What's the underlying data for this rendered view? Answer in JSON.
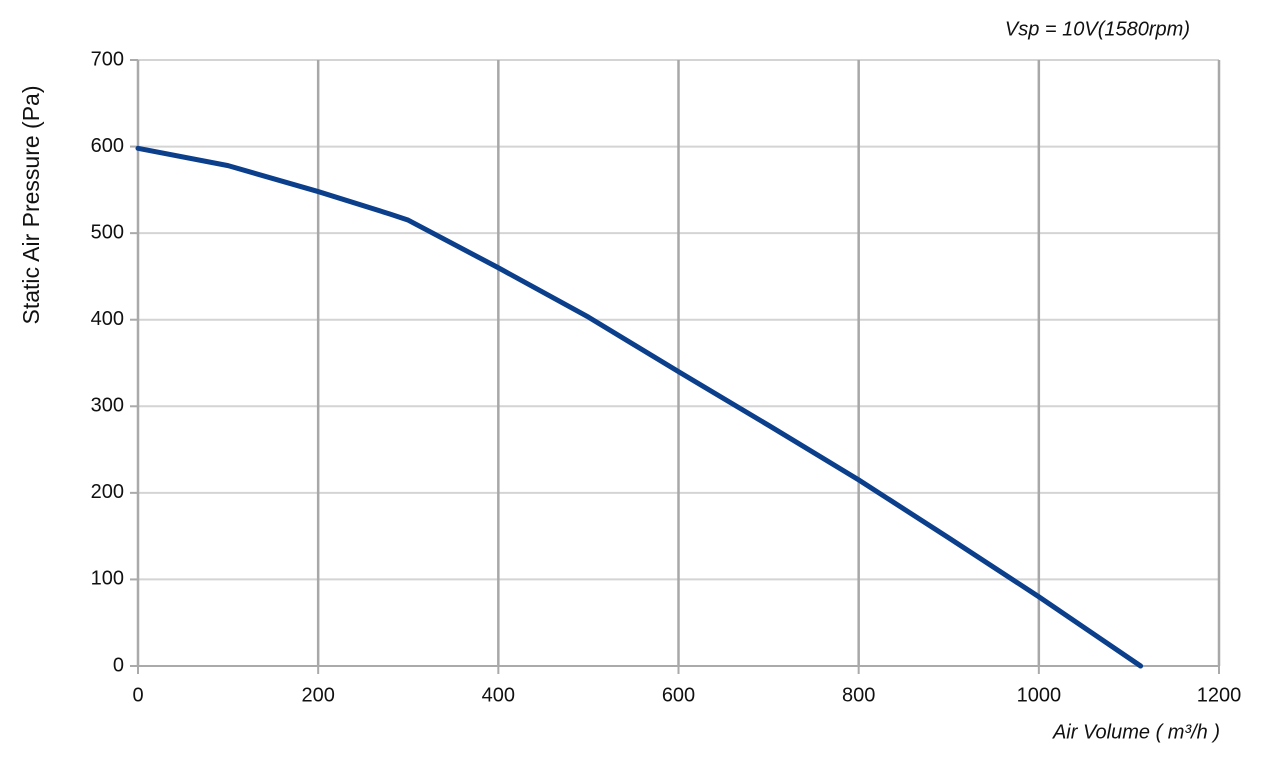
{
  "chart_data": {
    "type": "line",
    "annotation": "Vsp = 10V(1580rpm)",
    "x_label": "Air Volume ( m³/h )",
    "y_label": "Static Air Pressure  (Pa)",
    "x": [
      0,
      100,
      200,
      280,
      300,
      400,
      500,
      600,
      700,
      800,
      900,
      1000,
      1113
    ],
    "series": [
      {
        "name": "Vsp = 10V",
        "color": "#0b3f8c",
        "values": [
          598,
          578,
          548,
          522,
          515,
          460,
          403,
          340,
          278,
          215,
          148,
          80,
          0
        ]
      }
    ],
    "xlim": [
      0,
      1200
    ],
    "xticks": [
      0,
      200,
      400,
      600,
      800,
      1000,
      1200
    ],
    "ylim": [
      0,
      700
    ],
    "yticks": [
      0,
      100,
      200,
      300,
      400,
      500,
      600,
      700
    ],
    "grid": true
  }
}
